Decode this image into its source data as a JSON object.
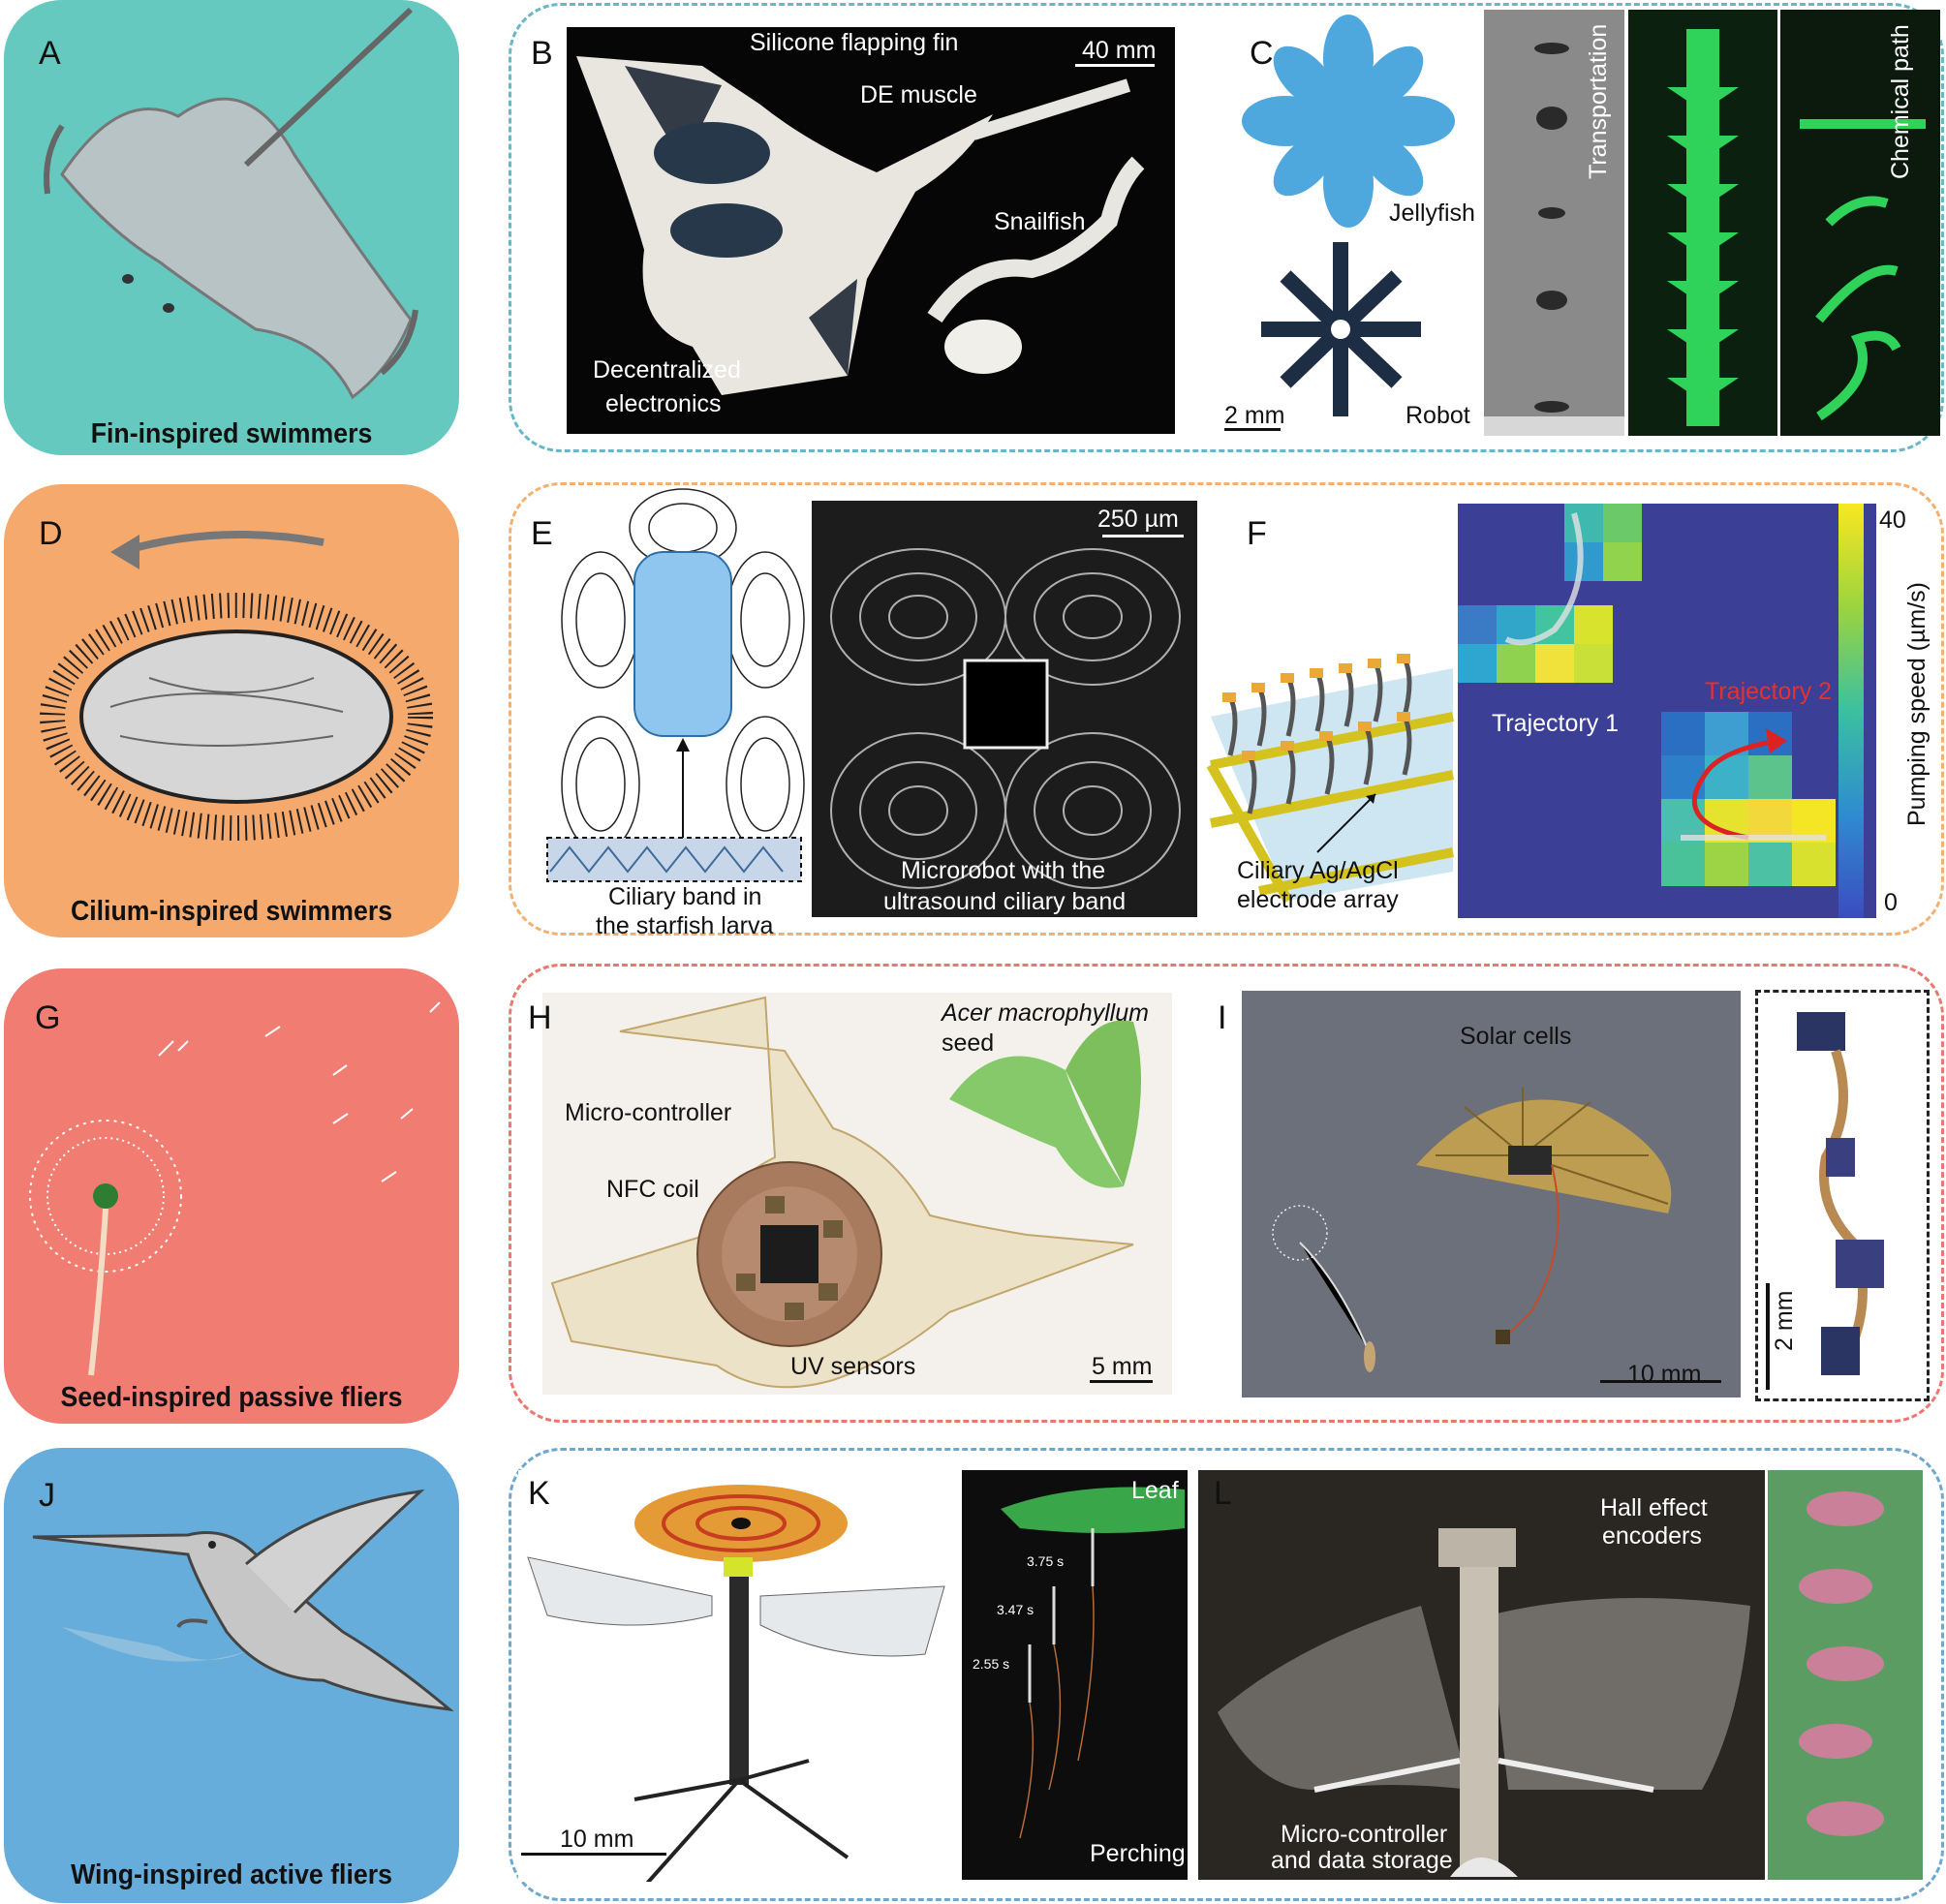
{
  "rows": [
    {
      "letter": "A",
      "caption": "Fin-inspired swimmers",
      "color": "#66c9c0",
      "border": "#66b8c8"
    },
    {
      "letter": "D",
      "caption": "Cilium-inspired swimmers",
      "color": "#f6a96c",
      "border": "#f2b071"
    },
    {
      "letter": "G",
      "caption": "Seed-inspired passive fliers",
      "color": "#f07c72",
      "border": "#e9786e"
    },
    {
      "letter": "J",
      "caption": "Wing-inspired active fliers",
      "color": "#67addb",
      "border": "#6ea8cf"
    }
  ],
  "panelB": {
    "letter": "B",
    "fin": "Silicone flapping fin",
    "muscle": "DE muscle",
    "scale": "40 mm",
    "snail": "Snailfish",
    "elec1": "Decentralized",
    "elec2": "electronics"
  },
  "panelC": {
    "letter": "C",
    "jelly": "Jellyfish",
    "robot": "Robot",
    "scale": "2 mm",
    "transport": "Transportation",
    "chem": "Chemical path"
  },
  "panelE": {
    "letter": "E",
    "scale": "250 µm",
    "band1": "Ciliary band in",
    "band2": "the starfish larva",
    "micro1": "Microrobot with the",
    "micro2": "ultrasound ciliary band"
  },
  "panelF": {
    "letter": "F",
    "elec1": "Ciliary Ag/AgCl",
    "elec2": "electrode array",
    "traj1": "Trajectory 1",
    "traj2": "Trajectory 2",
    "cbar_label": "Pumping speed (µm/s)",
    "cbar_max": "40",
    "cbar_min": "0"
  },
  "panelH": {
    "letter": "H",
    "seed1": "Acer macrophyllum",
    "seed2": "seed",
    "mcu": "Micro-controller",
    "nfc": "NFC coil",
    "uv": "UV sensors",
    "scale": "5 mm"
  },
  "panelI": {
    "letter": "I",
    "solar": "Solar cells",
    "scale": "10 mm",
    "scale2": "2 mm"
  },
  "panelK": {
    "letter": "K",
    "scale": "10 mm",
    "leaf": "Leaf",
    "perch": "Perching",
    "t1": "3.75 s",
    "t2": "3.47 s",
    "t3": "2.55 s"
  },
  "panelL": {
    "letter": "L",
    "hall1": "Hall effect",
    "hall2": "encoders",
    "mcu1": "Micro-controller",
    "mcu2": "and data storage"
  },
  "colors": {
    "dark": "#111111",
    "green": "#2fd35a",
    "blue": "#4aa3df",
    "pink": "#e16f8f",
    "viridis_low": "#3b4cc0",
    "viridis_high": "#f9e721"
  }
}
